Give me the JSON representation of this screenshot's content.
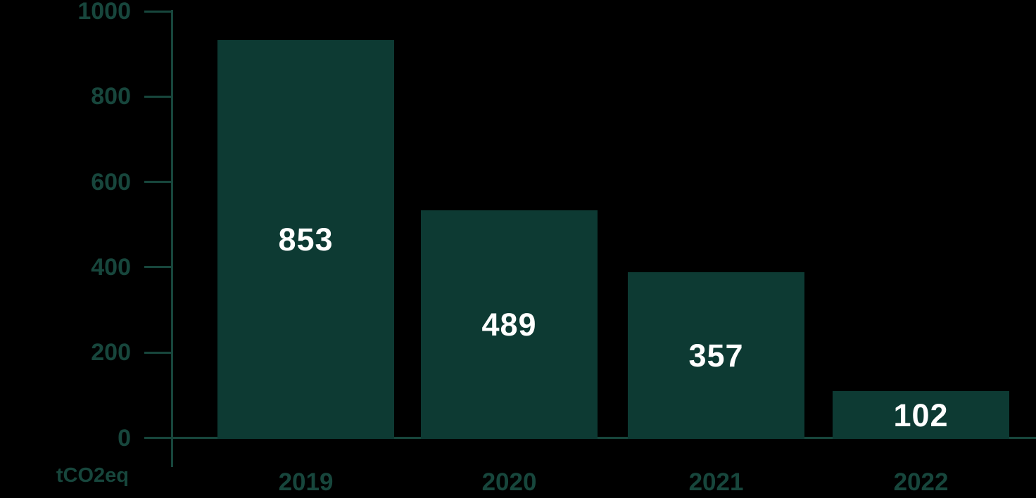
{
  "chart_data": {
    "type": "bar",
    "categories": [
      "2019",
      "2020",
      "2021",
      "2022"
    ],
    "values": [
      853,
      489,
      357,
      102
    ],
    "unit_label": "tCO2eq",
    "ylabel": "tCO2eq",
    "yticks": [
      "1000",
      "800",
      "600",
      "400",
      "200",
      "0"
    ],
    "ytick_values": [
      1000,
      800,
      600,
      400,
      200,
      0
    ],
    "ylim": [
      0,
      1000
    ],
    "grid": "off",
    "legend": "none",
    "bar_labels_position": "inside-center",
    "colors": {
      "background": "#000000",
      "bar_fill": "#0d3a33",
      "axis_line": "#17463c",
      "tick_label": "#17463c",
      "value_label": "#ffffff"
    }
  }
}
